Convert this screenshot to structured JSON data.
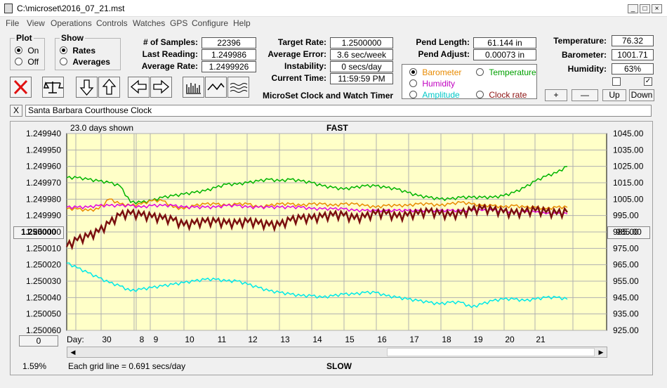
{
  "window": {
    "title": "C:\\microset\\2016_07_21.mst"
  },
  "menu": [
    "File",
    "View",
    "Operations",
    "Controls",
    "Watches",
    "GPS",
    "Configure",
    "Help"
  ],
  "plot_group": {
    "label": "Plot",
    "options": [
      {
        "label": "On",
        "selected": true
      },
      {
        "label": "Off",
        "selected": false
      }
    ]
  },
  "show_group": {
    "label": "Show",
    "options": [
      {
        "label": "Rates",
        "selected": true
      },
      {
        "label": "Averages",
        "selected": false
      }
    ]
  },
  "stats1": [
    {
      "label": "# of Samples:",
      "value": "22396"
    },
    {
      "label": "Last Reading:",
      "value": "1.249986"
    },
    {
      "label": "Average Rate:",
      "value": "1.2499926"
    }
  ],
  "stats2": [
    {
      "label": "Target Rate:",
      "value": "1.2500000"
    },
    {
      "label": "Average Error:",
      "value": "3.6 sec/week"
    },
    {
      "label": "Instability:",
      "value": "0 secs/day"
    },
    {
      "label": "Current Time:",
      "value": "11:59:59 PM"
    }
  ],
  "pend": [
    {
      "label": "Pend Length:",
      "value": "61.144 in"
    },
    {
      "label": "Pend Adjust:",
      "value": "0.00073 in"
    }
  ],
  "env": [
    {
      "label": "Temperature:",
      "value": "76.32"
    },
    {
      "label": "Barometer:",
      "value": "1001.71"
    },
    {
      "label": "Humidity:",
      "value": "63%"
    }
  ],
  "right_axis_options": [
    {
      "label": "Barometer",
      "color": "#e88a00",
      "selected": true
    },
    {
      "label": "Temperature",
      "color": "#00a000",
      "selected": false
    },
    {
      "label": "Humidity",
      "color": "#c000c0",
      "selected": false
    },
    {
      "label": "Amplitude",
      "color": "#00c8c8",
      "selected": false
    },
    {
      "label": "Clock rate",
      "color": "#8b1010",
      "selected": false
    }
  ],
  "app_caption": "MicroSet Clock and Watch Timer",
  "step_buttons": {
    "plus": "+",
    "minus": "—",
    "up": "Up",
    "down": "Down"
  },
  "clock_name": "Santa Barbara Courthouse Clock",
  "clear_label": "X",
  "chart_header": {
    "days_shown": "23.0 days shown",
    "top": "FAST",
    "bottom": "SLOW",
    "grid_note": "Each grid line = 0.691 secs/day",
    "day_label": "Day:",
    "zoom": "1.59%",
    "center_button": "1.250000",
    "right_center_button": "985.00",
    "offset_button": "0"
  },
  "chart_data": {
    "type": "line",
    "title": "",
    "x_ticks": [
      "30",
      "8",
      "9",
      "10",
      "11",
      "12",
      "13",
      "14",
      "15",
      "16",
      "17",
      "18",
      "19",
      "20",
      "21"
    ],
    "y_left_ticks": [
      "1.249940",
      "1.249950",
      "1.249960",
      "1.249970",
      "1.249980",
      "1.249990",
      "1.250000",
      "1.250010",
      "1.250020",
      "1.250030",
      "1.250040",
      "1.250050",
      "1.250060"
    ],
    "y_right_ticks": [
      "1045.00",
      "1035.00",
      "1025.00",
      "1015.00",
      "1005.00",
      "995.00",
      "985.00",
      "975.00",
      "965.00",
      "955.00",
      "945.00",
      "935.00",
      "925.00"
    ],
    "y_left_range": [
      1.24994,
      1.25006
    ],
    "y_right_range": [
      925,
      1045
    ],
    "series": [
      {
        "color": "#00b400",
        "axis": "right",
        "values": [
          1018,
          1018,
          1017,
          1016,
          1015,
          1013,
          1003,
          1003,
          1004,
          1006,
          1007,
          1008,
          1009,
          1010,
          1012,
          1014,
          1014,
          1015,
          1016,
          1017,
          1016,
          1017,
          1016,
          1015,
          1013,
          1012,
          1011,
          1012,
          1013,
          1013,
          1012,
          1011,
          1009,
          1007,
          1006,
          1005,
          1005,
          1006,
          1006,
          1006,
          1006,
          1007,
          1009,
          1012,
          1016,
          1019,
          1021,
          1025
        ]
      },
      {
        "color": "#e88a00",
        "axis": "right",
        "values": [
          999,
          999,
          998,
          999,
          1005,
          1002,
          1001,
          1002,
          1004,
          1004,
          1000,
          999,
          1001,
          1002,
          1002,
          1001,
          1002,
          1002,
          1000,
          1001,
          1002,
          1002,
          1001,
          1002,
          1002,
          1001,
          1002,
          1002,
          1001,
          1000,
          1001,
          1001,
          1001,
          1002,
          1002,
          1001,
          1002,
          1003,
          1002,
          1001,
          1001,
          1000,
          1001,
          1000,
          1000,
          999,
          1000,
          1000
        ]
      },
      {
        "color": "#e000e0",
        "axis": "right",
        "values": [
          1000,
          1000,
          1000,
          1001,
          1001,
          1001,
          1001,
          1000,
          1001,
          1001,
          1001,
          1000,
          1000,
          1000,
          1000,
          1001,
          1001,
          1000,
          1000,
          1000,
          1000,
          1000,
          1000,
          999,
          999,
          999,
          999,
          998,
          998,
          998,
          998,
          998,
          998,
          998,
          998,
          998,
          998,
          998,
          998,
          998,
          998,
          998,
          997,
          997,
          997,
          996,
          996,
          996
        ]
      },
      {
        "color": "#7a0f0f",
        "axis": "right",
        "values": [
          976,
          980,
          982,
          985,
          990,
          995,
          996,
          995,
          994,
          993,
          992,
          989,
          990,
          991,
          991,
          990,
          990,
          991,
          990,
          989,
          989,
          992,
          993,
          993,
          994,
          995,
          995,
          993,
          994,
          996,
          996,
          994,
          995,
          996,
          997,
          996,
          995,
          996,
          998,
          999,
          998,
          997,
          996,
          997,
          998,
          997,
          996,
          997
        ]
      },
      {
        "color": "#00e8e8",
        "axis": "right",
        "values": [
          966,
          963,
          960,
          957,
          954,
          952,
          949,
          950,
          951,
          952,
          953,
          954,
          955,
          956,
          956,
          955,
          955,
          953,
          951,
          949,
          948,
          947,
          946,
          946,
          945,
          946,
          947,
          947,
          948,
          948,
          946,
          945,
          944,
          943,
          942,
          941,
          942,
          942,
          939,
          941,
          943,
          944,
          944,
          943,
          944,
          945,
          945,
          944
        ]
      }
    ]
  }
}
